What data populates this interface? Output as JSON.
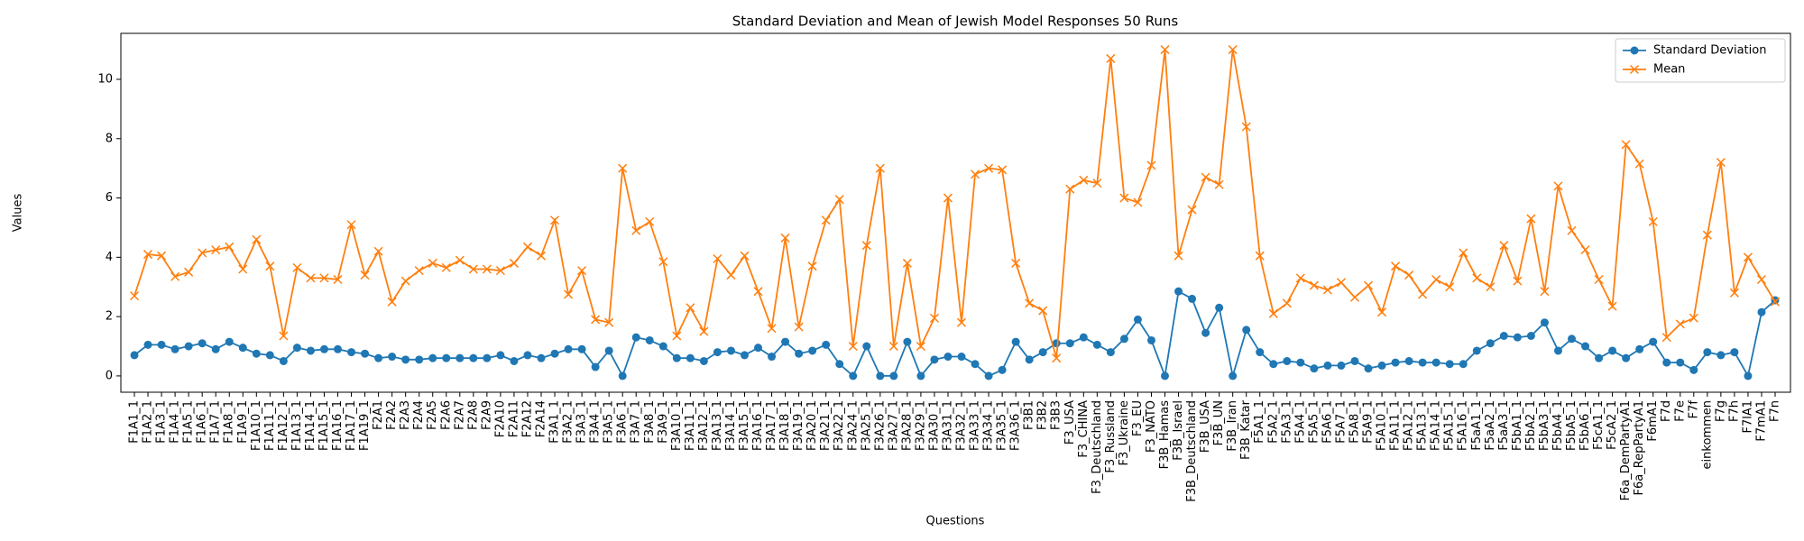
{
  "chart_data": {
    "type": "line",
    "title": "Standard Deviation and Mean of Jewish Model Responses 50 Runs",
    "xlabel": "Questions",
    "ylabel": "Values",
    "categories": [
      "F1A1_1",
      "F1A2_1",
      "F1A3_1",
      "F1A4_1",
      "F1A5_1",
      "F1A6_1",
      "F1A7_1",
      "F1A8_1",
      "F1A9_1",
      "F1A10_1",
      "F1A11_1",
      "F1A12_1",
      "F1A13_1",
      "F1A14_1",
      "F1A15_1",
      "F1A16_1",
      "F1A17_1",
      "F1A19_1",
      "F2A1",
      "F2A2",
      "F2A3",
      "F2A4",
      "F2A5",
      "F2A6",
      "F2A7",
      "F2A8",
      "F2A9",
      "F2A10",
      "F2A11",
      "F2A12",
      "F2A14",
      "F3A1_1",
      "F3A2_1",
      "F3A3_1",
      "F3A4_1",
      "F3A5_1",
      "F3A6_1",
      "F3A7_1",
      "F3A8_1",
      "F3A9_1",
      "F3A10_1",
      "F3A11_1",
      "F3A12_1",
      "F3A13_1",
      "F3A14_1",
      "F3A15_1",
      "F3A16_1",
      "F3A17_1",
      "F3A18_1",
      "F3A19_1",
      "F3A20_1",
      "F3A21_1",
      "F3A22_1",
      "F3A24_1",
      "F3A25_1",
      "F3A26_1",
      "F3A27_1",
      "F3A28_1",
      "F3A29_1",
      "F3A30_1",
      "F3A31_1",
      "F3A32_1",
      "F3A33_1",
      "F3A34_1",
      "F3A35_1",
      "F3A36_1",
      "F3B1",
      "F3B2",
      "F3B3",
      "F3_USA",
      "F3_CHINA",
      "F3_Deutschland",
      "F3_Russland",
      "F3_Ukraine",
      "F3_EU",
      "F3_NATO",
      "F3B_Hamas",
      "F3B_Israel",
      "F3B_Deutschland",
      "F3B_USA",
      "F3B_UN",
      "F3B_Iran",
      "F3B_Katar",
      "F5A1_1",
      "F5A2_1",
      "F5A3_1",
      "F5A4_1",
      "F5A5_1",
      "F5A6_1",
      "F5A7_1",
      "F5A8_1",
      "F5A9_1",
      "F5A10_1",
      "F5A11_1",
      "F5A12_1",
      "F5A13_1",
      "F5A14_1",
      "F5A15_1",
      "F5A16_1",
      "F5aA1_1",
      "F5aA2_1",
      "F5aA3_1",
      "F5bA1_1",
      "F5bA2_1",
      "F5bA3_1",
      "F5bA4_1",
      "F5bA5_1",
      "F5bA6_1",
      "F5cA1_1",
      "F5cA2_1",
      "F6a_DemPartyA1",
      "F6a_RepPartyA1",
      "F6mA1",
      "F7d",
      "F7e",
      "F7f",
      "einkommen",
      "F7g",
      "F7h",
      "F7lA1",
      "F7mA1",
      "F7n"
    ],
    "series": [
      {
        "name": "Standard Deviation",
        "color": "#1f77b4",
        "marker": "o",
        "values": [
          0.7,
          1.05,
          1.05,
          0.9,
          1.0,
          1.1,
          0.9,
          1.15,
          0.95,
          0.75,
          0.7,
          0.5,
          0.95,
          0.85,
          0.9,
          0.9,
          0.8,
          0.75,
          0.6,
          0.65,
          0.55,
          0.55,
          0.6,
          0.6,
          0.6,
          0.6,
          0.6,
          0.7,
          0.5,
          0.7,
          0.6,
          0.75,
          0.9,
          0.9,
          0.3,
          0.85,
          0.0,
          1.3,
          1.2,
          1.0,
          0.6,
          0.6,
          0.5,
          0.8,
          0.85,
          0.7,
          0.95,
          0.65,
          1.15,
          0.75,
          0.85,
          1.05,
          0.4,
          0.0,
          1.0,
          0.0,
          0.0,
          1.15,
          0.0,
          0.55,
          0.65,
          0.65,
          0.4,
          0.0,
          0.2,
          1.15,
          0.55,
          0.8,
          1.1,
          1.1,
          1.3,
          1.05,
          0.8,
          1.25,
          1.9,
          1.2,
          0.0,
          2.85,
          2.6,
          1.45,
          2.3,
          0.0,
          1.55,
          0.8,
          0.4,
          0.5,
          0.45,
          0.25,
          0.35,
          0.35,
          0.5,
          0.25,
          0.35,
          0.45,
          0.5,
          0.45,
          0.45,
          0.4,
          0.4,
          0.85,
          1.1,
          1.35,
          1.3,
          1.35,
          1.8,
          0.85,
          1.25,
          1.0,
          0.6,
          0.85,
          0.6,
          0.9,
          1.15,
          0.45,
          0.45,
          0.2,
          0.8,
          0.7,
          0.8,
          0.0,
          2.15,
          2.55
        ]
      },
      {
        "name": "Mean",
        "color": "#ff7f0e",
        "marker": "x",
        "values": [
          2.7,
          4.1,
          4.05,
          3.35,
          3.5,
          4.15,
          4.25,
          4.35,
          3.6,
          4.6,
          3.7,
          1.35,
          3.65,
          3.3,
          3.3,
          3.25,
          5.1,
          3.4,
          4.2,
          2.5,
          3.2,
          3.55,
          3.8,
          3.65,
          3.9,
          3.6,
          3.6,
          3.55,
          3.8,
          4.35,
          4.05,
          5.25,
          2.75,
          3.55,
          1.9,
          1.8,
          7.0,
          4.9,
          5.2,
          3.85,
          1.35,
          2.3,
          1.5,
          3.95,
          3.4,
          4.05,
          2.85,
          1.6,
          4.65,
          1.65,
          3.7,
          5.25,
          5.95,
          1.0,
          4.4,
          7.0,
          1.0,
          3.8,
          1.0,
          1.95,
          6.0,
          1.8,
          6.8,
          7.0,
          6.95,
          3.8,
          2.45,
          2.2,
          0.6,
          6.3,
          6.6,
          6.5,
          10.7,
          6.0,
          5.85,
          7.1,
          11.0,
          4.05,
          5.6,
          6.7,
          6.45,
          11.0,
          8.4,
          4.05,
          2.1,
          2.45,
          3.3,
          3.05,
          2.9,
          3.15,
          2.65,
          3.05,
          2.15,
          3.7,
          3.4,
          2.75,
          3.25,
          3.0,
          4.15,
          3.3,
          3.0,
          4.4,
          3.2,
          5.3,
          2.85,
          6.4,
          4.9,
          4.25,
          3.25,
          2.35,
          7.8,
          7.15,
          5.2,
          1.3,
          1.75,
          1.95,
          4.75,
          7.2,
          2.8,
          4.0,
          3.25,
          2.5
        ]
      }
    ],
    "ylim": [
      -0.55,
      11.55
    ],
    "yticks": [
      0,
      2,
      4,
      6,
      8,
      10
    ],
    "grid": false,
    "legend": "upper right"
  }
}
